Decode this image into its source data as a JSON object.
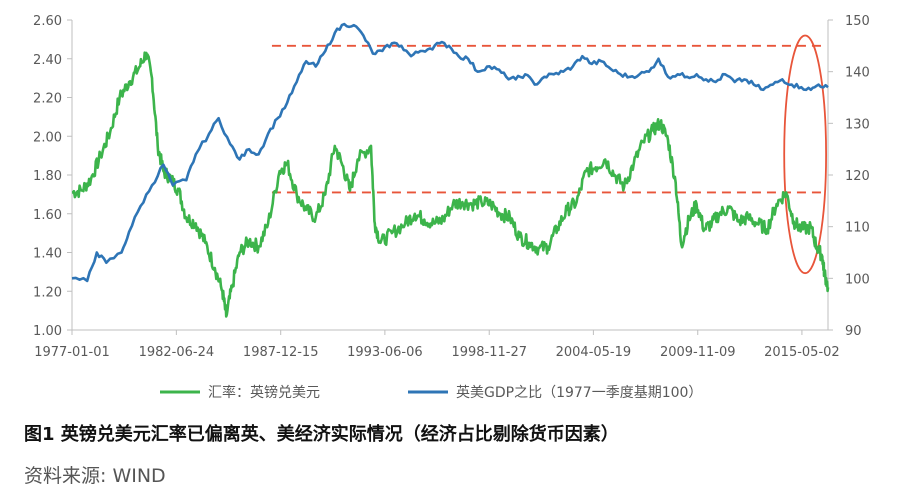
{
  "chart_data": {
    "type": "line",
    "title": "",
    "xlabel": "",
    "ylabel_left": "",
    "ylabel_right": "",
    "x_tick_labels": [
      "1977-01-01",
      "1982-06-24",
      "1987-12-15",
      "1993-06-06",
      "1998-11-27",
      "2004-05-19",
      "2009-11-09",
      "2015-05-02"
    ],
    "x_range": [
      1977.0,
      2016.7
    ],
    "ylim_left": [
      1.0,
      2.6
    ],
    "yticks_left": [
      "1.00",
      "1.20",
      "1.40",
      "1.60",
      "1.80",
      "2.00",
      "2.20",
      "2.40",
      "2.60"
    ],
    "ylim_right": [
      90,
      150
    ],
    "yticks_right": [
      "90",
      "100",
      "110",
      "120",
      "130",
      "140",
      "150"
    ],
    "grid": false,
    "legend_position": "bottom",
    "series": [
      {
        "name": "汇率：英镑兑美元",
        "color": "#3cb44b",
        "axis": "left",
        "points": [
          [
            1977.0,
            1.71
          ],
          [
            1977.5,
            1.72
          ],
          [
            1978.0,
            1.78
          ],
          [
            1978.5,
            1.9
          ],
          [
            1979.0,
            2.02
          ],
          [
            1979.5,
            2.2
          ],
          [
            1980.0,
            2.28
          ],
          [
            1980.5,
            2.35
          ],
          [
            1980.9,
            2.43
          ],
          [
            1981.2,
            2.3
          ],
          [
            1981.5,
            1.95
          ],
          [
            1981.8,
            1.82
          ],
          [
            1982.2,
            1.78
          ],
          [
            1982.6,
            1.72
          ],
          [
            1983.0,
            1.58
          ],
          [
            1983.5,
            1.55
          ],
          [
            1984.0,
            1.45
          ],
          [
            1984.5,
            1.32
          ],
          [
            1984.9,
            1.2
          ],
          [
            1985.1,
            1.07
          ],
          [
            1985.4,
            1.22
          ],
          [
            1985.8,
            1.4
          ],
          [
            1986.3,
            1.46
          ],
          [
            1986.8,
            1.43
          ],
          [
            1987.3,
            1.55
          ],
          [
            1987.9,
            1.82
          ],
          [
            1988.3,
            1.86
          ],
          [
            1988.8,
            1.7
          ],
          [
            1989.3,
            1.62
          ],
          [
            1989.8,
            1.58
          ],
          [
            1990.3,
            1.7
          ],
          [
            1990.8,
            1.95
          ],
          [
            1991.2,
            1.85
          ],
          [
            1991.6,
            1.72
          ],
          [
            1992.0,
            1.88
          ],
          [
            1992.7,
            1.95
          ],
          [
            1992.9,
            1.55
          ],
          [
            1993.2,
            1.45
          ],
          [
            1993.8,
            1.5
          ],
          [
            1994.5,
            1.55
          ],
          [
            1995.0,
            1.6
          ],
          [
            1995.5,
            1.57
          ],
          [
            1996.0,
            1.55
          ],
          [
            1996.5,
            1.57
          ],
          [
            1997.0,
            1.65
          ],
          [
            1997.5,
            1.66
          ],
          [
            1998.0,
            1.65
          ],
          [
            1998.5,
            1.66
          ],
          [
            1999.0,
            1.65
          ],
          [
            1999.5,
            1.6
          ],
          [
            2000.0,
            1.58
          ],
          [
            2000.5,
            1.48
          ],
          [
            2001.0,
            1.45
          ],
          [
            2001.5,
            1.42
          ],
          [
            2002.0,
            1.43
          ],
          [
            2002.5,
            1.53
          ],
          [
            2003.0,
            1.62
          ],
          [
            2003.5,
            1.66
          ],
          [
            2004.0,
            1.82
          ],
          [
            2004.5,
            1.84
          ],
          [
            2005.0,
            1.88
          ],
          [
            2005.5,
            1.8
          ],
          [
            2006.0,
            1.74
          ],
          [
            2006.5,
            1.86
          ],
          [
            2007.0,
            1.97
          ],
          [
            2007.5,
            2.03
          ],
          [
            2007.9,
            2.07
          ],
          [
            2008.3,
            1.98
          ],
          [
            2008.7,
            1.76
          ],
          [
            2009.0,
            1.44
          ],
          [
            2009.4,
            1.57
          ],
          [
            2009.8,
            1.65
          ],
          [
            2010.2,
            1.52
          ],
          [
            2010.6,
            1.55
          ],
          [
            2011.0,
            1.6
          ],
          [
            2011.5,
            1.63
          ],
          [
            2012.0,
            1.56
          ],
          [
            2012.5,
            1.58
          ],
          [
            2013.0,
            1.55
          ],
          [
            2013.5,
            1.52
          ],
          [
            2014.0,
            1.65
          ],
          [
            2014.5,
            1.71
          ],
          [
            2014.9,
            1.56
          ],
          [
            2015.3,
            1.52
          ],
          [
            2015.8,
            1.53
          ],
          [
            2016.1,
            1.43
          ],
          [
            2016.4,
            1.38
          ],
          [
            2016.5,
            1.3
          ],
          [
            2016.7,
            1.22
          ]
        ]
      },
      {
        "name": "英美GDP之比（1977一季度基期100）",
        "color": "#2e75b6",
        "axis": "right",
        "points": [
          [
            1977.0,
            100.0
          ],
          [
            1977.8,
            99.5
          ],
          [
            1978.3,
            105.0
          ],
          [
            1978.8,
            103.0
          ],
          [
            1979.6,
            105.0
          ],
          [
            1980.0,
            109.0
          ],
          [
            1980.6,
            114.0
          ],
          [
            1981.2,
            118.0
          ],
          [
            1981.8,
            122.0
          ],
          [
            1982.3,
            118.0
          ],
          [
            1983.0,
            119.0
          ],
          [
            1983.5,
            124.0
          ],
          [
            1984.2,
            128.0
          ],
          [
            1984.7,
            131.0
          ],
          [
            1985.3,
            126.0
          ],
          [
            1985.8,
            123.0
          ],
          [
            1986.3,
            125.0
          ],
          [
            1986.8,
            124.0
          ],
          [
            1987.3,
            128.0
          ],
          [
            1987.8,
            131.0
          ],
          [
            1988.3,
            134.0
          ],
          [
            1988.8,
            138.0
          ],
          [
            1989.3,
            142.0
          ],
          [
            1989.8,
            141.0
          ],
          [
            1990.3,
            144.0
          ],
          [
            1990.8,
            147.5
          ],
          [
            1991.3,
            149.2
          ],
          [
            1991.8,
            149.0
          ],
          [
            1992.3,
            147.0
          ],
          [
            1992.8,
            143.5
          ],
          [
            1993.3,
            144.0
          ],
          [
            1993.8,
            145.5
          ],
          [
            1994.3,
            145.0
          ],
          [
            1994.8,
            143.0
          ],
          [
            1995.3,
            144.0
          ],
          [
            1995.8,
            144.5
          ],
          [
            1996.3,
            145.5
          ],
          [
            1996.8,
            145.0
          ],
          [
            1997.3,
            143.0
          ],
          [
            1997.8,
            142.5
          ],
          [
            1998.3,
            140.0
          ],
          [
            1998.8,
            141.0
          ],
          [
            1999.3,
            140.5
          ],
          [
            1999.8,
            139.0
          ],
          [
            2000.3,
            138.5
          ],
          [
            2000.8,
            139.5
          ],
          [
            2001.3,
            137.5
          ],
          [
            2001.8,
            139.0
          ],
          [
            2002.3,
            139.5
          ],
          [
            2002.8,
            140.0
          ],
          [
            2003.3,
            141.0
          ],
          [
            2003.8,
            143.0
          ],
          [
            2004.3,
            141.5
          ],
          [
            2004.8,
            142.0
          ],
          [
            2005.3,
            140.5
          ],
          [
            2005.8,
            139.5
          ],
          [
            2006.3,
            139.0
          ],
          [
            2006.8,
            139.5
          ],
          [
            2007.3,
            140.0
          ],
          [
            2007.8,
            142.5
          ],
          [
            2008.3,
            139.0
          ],
          [
            2008.8,
            139.5
          ],
          [
            2009.3,
            139.0
          ],
          [
            2009.8,
            139.5
          ],
          [
            2010.3,
            138.5
          ],
          [
            2010.8,
            138.0
          ],
          [
            2011.3,
            139.5
          ],
          [
            2011.8,
            138.0
          ],
          [
            2012.3,
            138.5
          ],
          [
            2012.8,
            137.5
          ],
          [
            2013.3,
            136.5
          ],
          [
            2013.8,
            137.5
          ],
          [
            2014.3,
            138.5
          ],
          [
            2014.8,
            137.5
          ],
          [
            2015.3,
            137.0
          ],
          [
            2015.8,
            136.5
          ],
          [
            2016.2,
            137.5
          ],
          [
            2016.7,
            137.0
          ]
        ]
      }
    ],
    "reference_lines": [
      {
        "axis": "right",
        "value": 145,
        "from": 1987.5,
        "to": 2016.5,
        "color": "#e8553a",
        "style": "dashed"
      },
      {
        "axis": "left",
        "value": 1.71,
        "from": 1987.5,
        "to": 2016.5,
        "color": "#e8553a",
        "style": "dashed"
      }
    ],
    "highlight_ellipse": {
      "color": "#e8553a",
      "x_from": 2014.4,
      "x_to": 2016.6,
      "y_from_right": 101,
      "y_to_right": 147
    }
  },
  "caption": "图1  英镑兑美元汇率已偏离英、美经济实际情况（经济占比剔除货币因素）",
  "source": "资料来源: WIND"
}
